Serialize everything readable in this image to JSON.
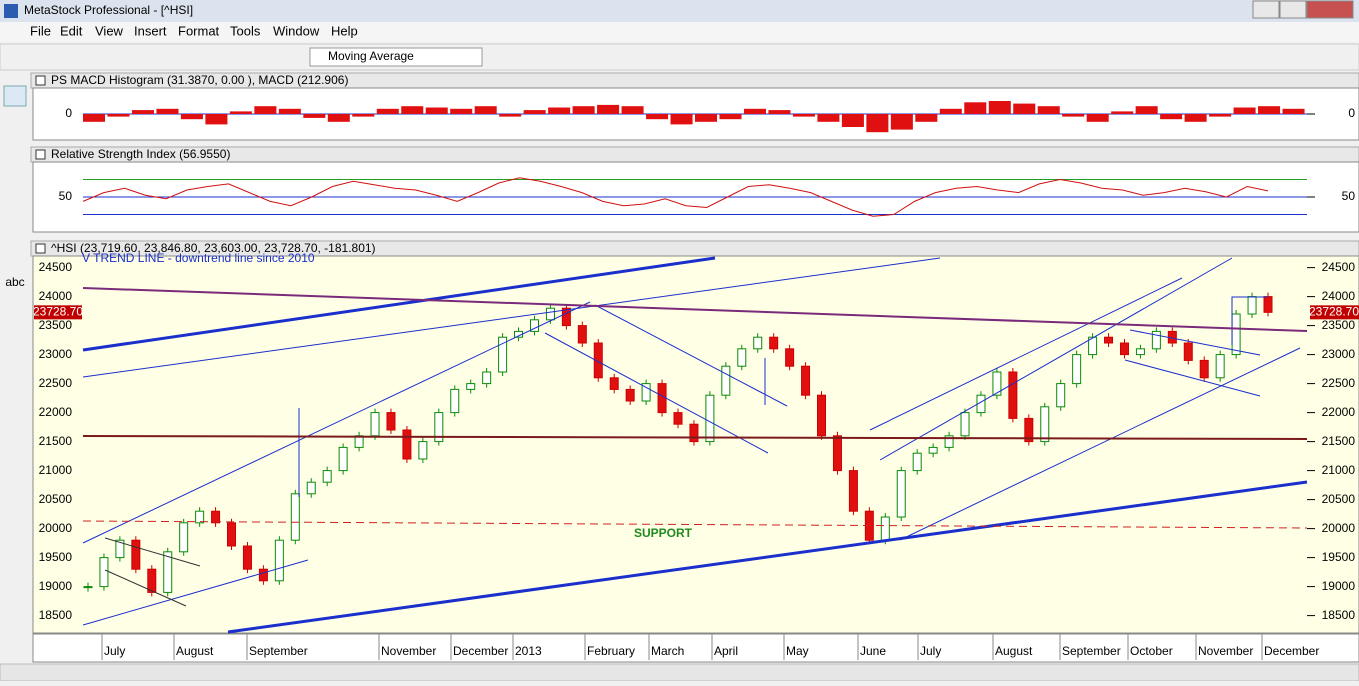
{
  "window": {
    "title": "MetaStock Professional - [^HSI]"
  },
  "menu": [
    "File",
    "Edit",
    "View",
    "Insert",
    "Format",
    "Tools",
    "Window",
    "Help"
  ],
  "toolbar": {
    "indicator": "Moving Average"
  },
  "tools": {
    "text_tool": "abc"
  },
  "panels": {
    "macd": {
      "title": "PS MACD Histogram (31.3870, 0.00 ), MACD (212.906)",
      "ylim": [
        -1000,
        1000
      ],
      "yticks": [
        0
      ],
      "values": [
        -300,
        -100,
        150,
        200,
        -200,
        -400,
        100,
        300,
        200,
        -150,
        -300,
        -100,
        200,
        300,
        250,
        200,
        300,
        -100,
        150,
        250,
        300,
        350,
        300,
        -200,
        -400,
        -300,
        -200,
        200,
        150,
        -100,
        -300,
        -500,
        -700,
        -600,
        -300,
        200,
        450,
        500,
        400,
        300,
        -100,
        -300,
        100,
        300,
        -200,
        -300,
        -100,
        250,
        300,
        200
      ]
    },
    "rsi": {
      "title": "Relative Strength Index (56.9550)",
      "ylim": [
        10,
        90
      ],
      "yticks": [
        50
      ],
      "levels": [
        70,
        30
      ],
      "values": [
        45,
        55,
        60,
        52,
        48,
        58,
        62,
        65,
        55,
        45,
        40,
        50,
        62,
        68,
        64,
        60,
        58,
        52,
        45,
        55,
        66,
        72,
        68,
        62,
        55,
        45,
        40,
        42,
        48,
        40,
        38,
        50,
        62,
        64,
        60,
        55,
        45,
        35,
        28,
        30,
        45,
        55,
        60,
        62,
        58,
        55,
        65,
        70,
        66,
        60,
        58,
        52,
        55,
        60,
        56,
        50,
        62,
        57
      ]
    },
    "price": {
      "title": "^HSI (23,719.60, 23,846.80, 23,603.00, 23,728.70, -181.801)",
      "annotation": "V TREND LINE - downtrend line since 2010",
      "support": "SUPPORT",
      "ylim": [
        18200,
        24700
      ],
      "yticks": [
        18500,
        19000,
        19500,
        20000,
        20500,
        21000,
        21500,
        22000,
        22500,
        23000,
        23500,
        24000,
        24500
      ],
      "values": [
        19000,
        19500,
        19800,
        19300,
        18900,
        19600,
        20100,
        20300,
        20100,
        19700,
        19300,
        19100,
        19800,
        20600,
        20800,
        21000,
        21400,
        21600,
        22000,
        21700,
        21200,
        21500,
        22000,
        22400,
        22500,
        22700,
        23300,
        23400,
        23600,
        23800,
        23500,
        23200,
        22600,
        22400,
        22200,
        22500,
        22000,
        21800,
        21500,
        22300,
        22800,
        23100,
        23300,
        23100,
        22800,
        22300,
        21600,
        21000,
        20300,
        19800,
        20200,
        21000,
        21300,
        21400,
        21600,
        22000,
        22300,
        22700,
        21900,
        21500,
        22100,
        22500,
        23000,
        23300,
        23200,
        23000,
        23100,
        23400,
        23200,
        22900,
        22600,
        23000,
        23700,
        24000,
        23728.7
      ],
      "last": {
        "value": 23728.7,
        "label": "23728.70"
      },
      "months": [
        "July",
        "August",
        "September",
        "November",
        "December",
        "2013",
        "February",
        "March",
        "April",
        "May",
        "June",
        "July",
        "August",
        "September",
        "October",
        "November",
        "December"
      ]
    }
  }
}
